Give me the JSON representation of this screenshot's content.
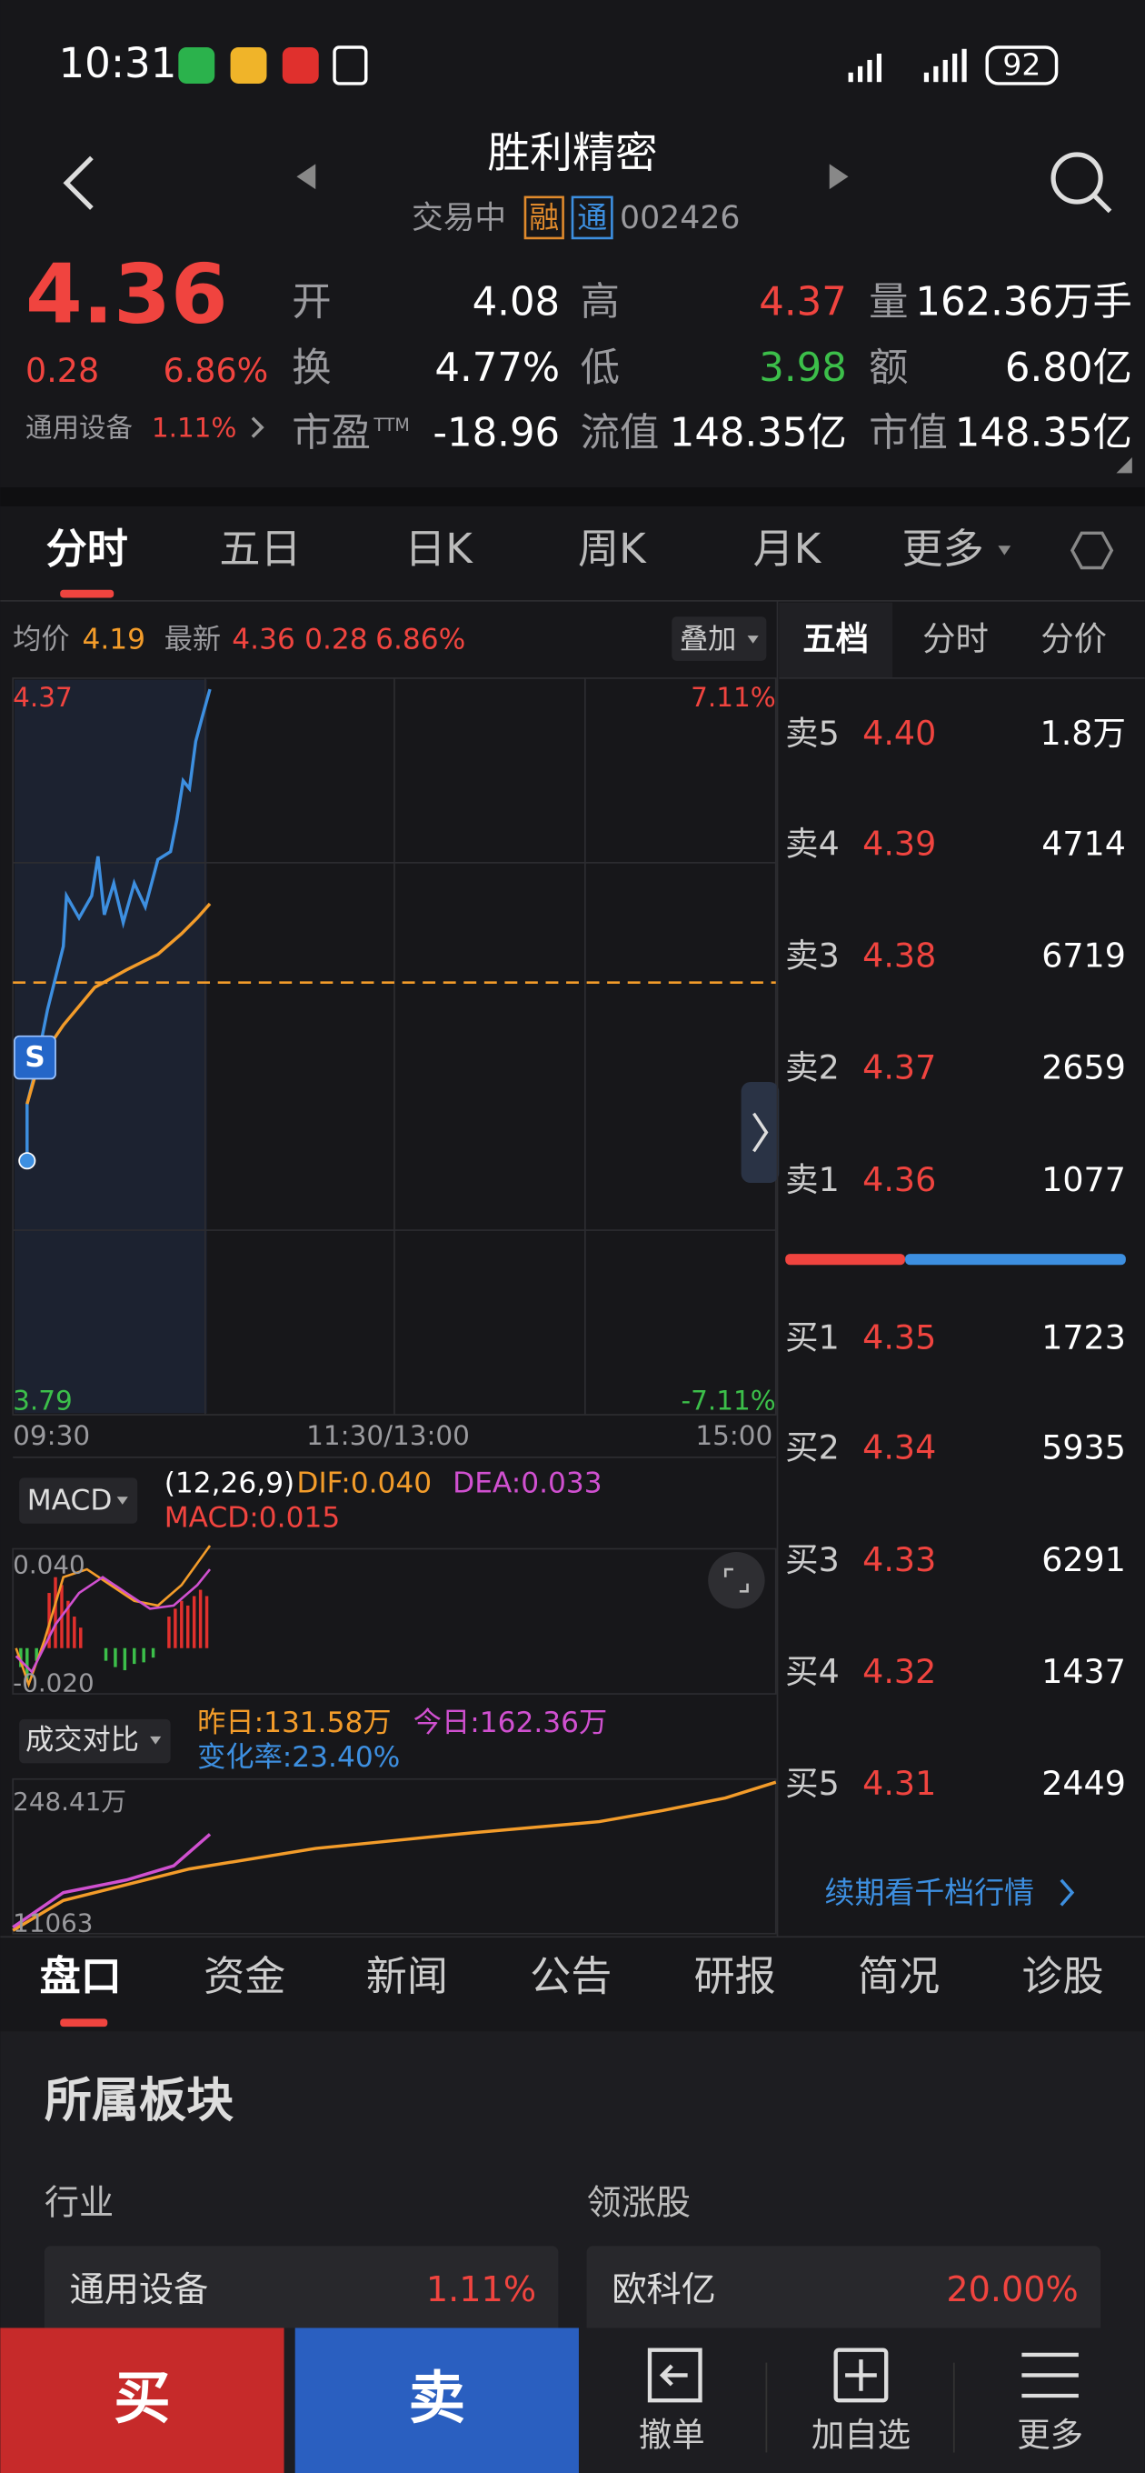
{
  "status_bar": {
    "time": "10:31",
    "battery": "92"
  },
  "header": {
    "title": "胜利精密",
    "state": "交易中",
    "tags": [
      "融",
      "通"
    ],
    "code": "002426"
  },
  "quote": {
    "price": "4.36",
    "change": "0.28",
    "change_pct": "6.86%",
    "sector": "通用设备",
    "sector_change": "1.11%"
  },
  "stats": [
    {
      "label": "开",
      "value": "4.08"
    },
    {
      "label": "高",
      "value": "4.37"
    },
    {
      "label": "量",
      "value": "162.36万手"
    },
    {
      "label": "换",
      "value": "4.77%"
    },
    {
      "label": "低",
      "value": "3.98"
    },
    {
      "label": "额",
      "value": "6.80亿"
    },
    {
      "label": "市盈",
      "label_sup": "TTM",
      "value": "-18.96"
    },
    {
      "label": "流值",
      "value": "148.35亿"
    },
    {
      "label": "市值",
      "value": "148.35亿"
    }
  ],
  "chart_tabs": [
    "分时",
    "五日",
    "日K",
    "周K",
    "月K",
    "更多"
  ],
  "intraday": {
    "avg_label": "均价",
    "avg": "4.19",
    "last_label": "最新",
    "last": "4.36",
    "change": "0.28",
    "change_pct": "6.86%",
    "overlay": "叠加",
    "y_top": "4.37",
    "pct_top": "7.11%",
    "y_bottom": "3.79",
    "pct_bottom": "-7.11%",
    "times": [
      "09:30",
      "11:30/13:00",
      "15:00"
    ],
    "marker": "S"
  },
  "macd": {
    "name": "MACD",
    "params": "(12,26,9)",
    "dif": "DIF:0.040",
    "dea": "DEA:0.033",
    "macd": "MACD:0.015",
    "y_top": "0.040",
    "y_bottom": "-0.020"
  },
  "volume": {
    "name": "成交对比",
    "yesterday": "昨日:131.58万",
    "today": "今日:162.36万",
    "change_rate": "变化率:23.40%",
    "y_top": "248.41万",
    "y_bottom": "11063"
  },
  "order_book": {
    "tabs": [
      "五档",
      "分时",
      "分价"
    ],
    "asks": [
      {
        "label": "卖5",
        "price": "4.40",
        "volume": "1.8万"
      },
      {
        "label": "卖4",
        "price": "4.39",
        "volume": "4714"
      },
      {
        "label": "卖3",
        "price": "4.38",
        "volume": "6719"
      },
      {
        "label": "卖2",
        "price": "4.37",
        "volume": "2659"
      },
      {
        "label": "卖1",
        "price": "4.36",
        "volume": "1077"
      }
    ],
    "bids": [
      {
        "label": "买1",
        "price": "4.35",
        "volume": "1723"
      },
      {
        "label": "买2",
        "price": "4.34",
        "volume": "5935"
      },
      {
        "label": "买3",
        "price": "4.33",
        "volume": "6291"
      },
      {
        "label": "买4",
        "price": "4.32",
        "volume": "1437"
      },
      {
        "label": "买5",
        "price": "4.31",
        "volume": "2449"
      }
    ],
    "link": "续期看千档行情"
  },
  "info_tabs": [
    "盘口",
    "资金",
    "新闻",
    "公告",
    "研报",
    "简况",
    "诊股"
  ],
  "sector_panel": {
    "title": "所属板块",
    "industry_label": "行业",
    "leader_label": "领涨股",
    "industry": {
      "name": "通用设备",
      "change": "1.11%"
    },
    "leader": {
      "name": "欧科亿",
      "change": "20.00%"
    }
  },
  "action_bar": {
    "buy": "买",
    "sell": "卖",
    "cancel": "撤单",
    "watchlist": "加自选",
    "more": "更多"
  }
}
